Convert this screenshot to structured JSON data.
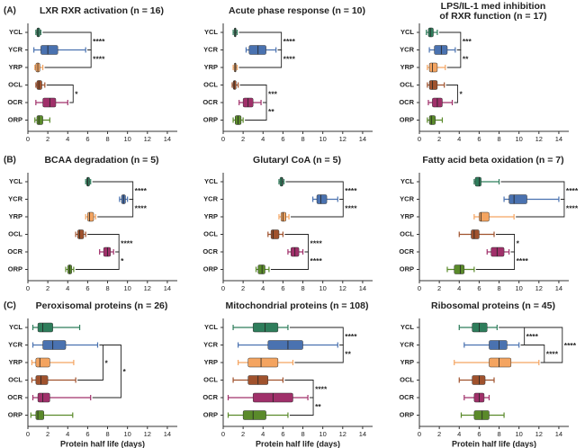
{
  "panel_labels": [
    "(A)",
    "(B)",
    "(C)"
  ],
  "chart_data": [
    {
      "type": "box",
      "title": "LXR RXR activation (n = 16)",
      "categories": [
        "YCL",
        "YCR",
        "YRP",
        "OCL",
        "OCR",
        "ORP"
      ],
      "colors": [
        "#2e7d5b",
        "#4a72b0",
        "#f4a460",
        "#a0522d",
        "#a0306a",
        "#5a8a2a"
      ],
      "boxes": [
        {
          "min": 0.8,
          "q1": 0.9,
          "median": 1.0,
          "q3": 1.2,
          "max": 1.3
        },
        {
          "min": 0.6,
          "q1": 1.3,
          "median": 2.0,
          "q3": 3.0,
          "max": 5.8
        },
        {
          "min": 0.7,
          "q1": 0.8,
          "median": 1.0,
          "q3": 1.2,
          "max": 1.5
        },
        {
          "min": 0.8,
          "q1": 0.9,
          "median": 1.1,
          "q3": 1.4,
          "max": 1.7
        },
        {
          "min": 0.8,
          "q1": 1.5,
          "median": 2.2,
          "q3": 2.8,
          "max": 4.0
        },
        {
          "min": 0.7,
          "q1": 0.9,
          "median": 1.1,
          "q3": 1.5,
          "max": 2.2
        }
      ],
      "annotations": [
        {
          "rows": [
            0,
            1
          ],
          "label": "****"
        },
        {
          "rows": [
            1,
            2
          ],
          "label": "****"
        },
        {
          "rows": [
            3,
            4
          ],
          "label": "*"
        }
      ],
      "xlim": [
        0,
        15
      ],
      "xticks": [
        0,
        2,
        4,
        6,
        8,
        10,
        12,
        14
      ]
    },
    {
      "type": "box",
      "title": "Acute phase response (n = 10)",
      "categories": [
        "YCL",
        "YCR",
        "YRP",
        "OCL",
        "OCR",
        "ORP"
      ],
      "colors": [
        "#2e7d5b",
        "#4a72b0",
        "#f4a460",
        "#a0522d",
        "#a0306a",
        "#5a8a2a"
      ],
      "boxes": [
        {
          "min": 1.0,
          "q1": 1.1,
          "median": 1.2,
          "q3": 1.3,
          "max": 1.4
        },
        {
          "min": 2.3,
          "q1": 2.6,
          "median": 3.5,
          "q3": 4.3,
          "max": 5.3
        },
        {
          "min": 1.0,
          "q1": 1.1,
          "median": 1.2,
          "q3": 1.3,
          "max": 1.4
        },
        {
          "min": 0.9,
          "q1": 1.0,
          "median": 1.1,
          "q3": 1.3,
          "max": 1.5
        },
        {
          "min": 1.6,
          "q1": 2.0,
          "median": 2.5,
          "q3": 3.0,
          "max": 3.8
        },
        {
          "min": 1.0,
          "q1": 1.2,
          "median": 1.5,
          "q3": 1.8,
          "max": 2.0
        }
      ],
      "annotations": [
        {
          "rows": [
            0,
            1
          ],
          "label": "****"
        },
        {
          "rows": [
            1,
            2
          ],
          "label": "****"
        },
        {
          "rows": [
            3,
            4
          ],
          "label": "***"
        },
        {
          "rows": [
            4,
            5
          ],
          "label": "**"
        }
      ],
      "xlim": [
        0,
        15
      ],
      "xticks": [
        0,
        2,
        4,
        6,
        8,
        10,
        12,
        14
      ]
    },
    {
      "type": "box",
      "title": [
        "LPS/IL-1 med inhibition",
        "of RXR function (n = 17)"
      ],
      "categories": [
        "YCL",
        "YCR",
        "YRP",
        "OCL",
        "OCR",
        "ORP"
      ],
      "colors": [
        "#2e7d5b",
        "#4a72b0",
        "#f4a460",
        "#a0522d",
        "#a0306a",
        "#5a8a2a"
      ],
      "boxes": [
        {
          "min": 0.7,
          "q1": 0.9,
          "median": 1.1,
          "q3": 1.4,
          "max": 1.8
        },
        {
          "min": 1.0,
          "q1": 1.5,
          "median": 2.2,
          "q3": 2.8,
          "max": 3.6
        },
        {
          "min": 0.8,
          "q1": 1.0,
          "median": 1.3,
          "q3": 1.8,
          "max": 2.6
        },
        {
          "min": 0.8,
          "q1": 1.0,
          "median": 1.3,
          "q3": 1.8,
          "max": 2.5
        },
        {
          "min": 0.9,
          "q1": 1.3,
          "median": 1.8,
          "q3": 2.3,
          "max": 3.3
        },
        {
          "min": 0.8,
          "q1": 1.0,
          "median": 1.2,
          "q3": 1.6,
          "max": 2.3
        }
      ],
      "annotations": [
        {
          "rows": [
            0,
            1
          ],
          "label": "***"
        },
        {
          "rows": [
            1,
            2
          ],
          "label": "**"
        },
        {
          "rows": [
            3,
            4
          ],
          "label": "*"
        }
      ],
      "xlim": [
        0,
        15
      ],
      "xticks": [
        0,
        2,
        4,
        6,
        8,
        10,
        12,
        14
      ]
    },
    {
      "type": "box",
      "title": "BCAA degradation (n = 5)",
      "categories": [
        "YCL",
        "YCR",
        "YRP",
        "OCL",
        "OCR",
        "ORP"
      ],
      "colors": [
        "#2e7d5b",
        "#4a72b0",
        "#f4a460",
        "#a0522d",
        "#a0306a",
        "#5a8a2a"
      ],
      "boxes": [
        {
          "min": 5.8,
          "q1": 5.9,
          "median": 6.0,
          "q3": 6.2,
          "max": 6.3
        },
        {
          "min": 9.2,
          "q1": 9.4,
          "median": 9.6,
          "q3": 9.8,
          "max": 10.0
        },
        {
          "min": 5.8,
          "q1": 6.0,
          "median": 6.2,
          "q3": 6.6,
          "max": 6.8
        },
        {
          "min": 4.8,
          "q1": 5.0,
          "median": 5.2,
          "q3": 5.6,
          "max": 5.8
        },
        {
          "min": 7.2,
          "q1": 7.6,
          "median": 8.0,
          "q3": 8.3,
          "max": 8.6
        },
        {
          "min": 3.8,
          "q1": 4.0,
          "median": 4.2,
          "q3": 4.4,
          "max": 4.6
        }
      ],
      "annotations": [
        {
          "rows": [
            0,
            1
          ],
          "label": "****"
        },
        {
          "rows": [
            1,
            2
          ],
          "label": "****"
        },
        {
          "rows": [
            3,
            4
          ],
          "label": "****"
        },
        {
          "rows": [
            4,
            5
          ],
          "label": "*"
        }
      ],
      "xlim": [
        0,
        15
      ],
      "xticks": [
        0,
        2,
        4,
        6,
        8,
        10,
        12,
        14
      ]
    },
    {
      "type": "box",
      "title": "Glutaryl CoA (n = 5)",
      "categories": [
        "YCL",
        "YCR",
        "YRP",
        "OCL",
        "OCR",
        "ORP"
      ],
      "colors": [
        "#2e7d5b",
        "#4a72b0",
        "#f4a460",
        "#a0522d",
        "#a0306a",
        "#5a8a2a"
      ],
      "boxes": [
        {
          "min": 5.6,
          "q1": 5.7,
          "median": 5.9,
          "q3": 6.0,
          "max": 6.1
        },
        {
          "min": 9.0,
          "q1": 9.4,
          "median": 9.8,
          "q3": 10.4,
          "max": 11.5
        },
        {
          "min": 5.6,
          "q1": 5.8,
          "median": 6.0,
          "q3": 6.3,
          "max": 6.6
        },
        {
          "min": 4.5,
          "q1": 4.8,
          "median": 5.0,
          "q3": 5.6,
          "max": 6.0
        },
        {
          "min": 6.5,
          "q1": 6.8,
          "median": 7.2,
          "q3": 7.6,
          "max": 8.0
        },
        {
          "min": 3.3,
          "q1": 3.5,
          "median": 3.9,
          "q3": 4.2,
          "max": 4.6
        }
      ],
      "annotations": [
        {
          "rows": [
            0,
            1
          ],
          "label": "****"
        },
        {
          "rows": [
            1,
            2
          ],
          "label": "****"
        },
        {
          "rows": [
            3,
            4
          ],
          "label": "****"
        },
        {
          "rows": [
            4,
            5
          ],
          "label": "****"
        }
      ],
      "xlim": [
        0,
        15
      ],
      "xticks": [
        0,
        2,
        4,
        6,
        8,
        10,
        12,
        14
      ]
    },
    {
      "type": "box",
      "title": "Fatty acid beta oxidation (n = 7)",
      "categories": [
        "YCL",
        "YCR",
        "YRP",
        "OCL",
        "OCR",
        "ORP"
      ],
      "colors": [
        "#2e7d5b",
        "#4a72b0",
        "#f4a460",
        "#a0522d",
        "#a0306a",
        "#5a8a2a"
      ],
      "boxes": [
        {
          "min": 5.5,
          "q1": 5.6,
          "median": 6.0,
          "q3": 6.2,
          "max": 8.0
        },
        {
          "min": 8.5,
          "q1": 9.0,
          "median": 9.5,
          "q3": 10.8,
          "max": 14.0
        },
        {
          "min": 5.5,
          "q1": 6.0,
          "median": 6.2,
          "q3": 7.0,
          "max": 9.5
        },
        {
          "min": 4.0,
          "q1": 5.2,
          "median": 5.5,
          "q3": 6.0,
          "max": 7.5
        },
        {
          "min": 6.8,
          "q1": 7.2,
          "median": 7.8,
          "q3": 8.5,
          "max": 9.0
        },
        {
          "min": 2.8,
          "q1": 3.5,
          "median": 4.1,
          "q3": 4.5,
          "max": 5.5
        }
      ],
      "annotations": [
        {
          "rows": [
            0,
            1
          ],
          "label": "****"
        },
        {
          "rows": [
            1,
            2
          ],
          "label": "****"
        },
        {
          "rows": [
            3,
            4
          ],
          "label": "*"
        },
        {
          "rows": [
            4,
            5
          ],
          "label": "****"
        }
      ],
      "xlim": [
        0,
        15
      ],
      "xticks": [
        0,
        2,
        4,
        6,
        8,
        10,
        12,
        14
      ]
    },
    {
      "type": "box",
      "title": "Peroxisomal proteins (n = 26)",
      "categories": [
        "YCL",
        "YCR",
        "YRP",
        "OCL",
        "OCR",
        "ORP"
      ],
      "colors": [
        "#2e7d5b",
        "#4a72b0",
        "#f4a460",
        "#a0522d",
        "#a0306a",
        "#5a8a2a"
      ],
      "boxes": [
        {
          "min": 0.5,
          "q1": 1.0,
          "median": 1.5,
          "q3": 2.5,
          "max": 5.2
        },
        {
          "min": 0.5,
          "q1": 1.5,
          "median": 2.5,
          "q3": 3.8,
          "max": 7.0
        },
        {
          "min": 0.4,
          "q1": 0.8,
          "median": 1.2,
          "q3": 2.2,
          "max": 4.6
        },
        {
          "min": 0.4,
          "q1": 0.8,
          "median": 1.3,
          "q3": 2.0,
          "max": 4.8
        },
        {
          "min": 0.5,
          "q1": 1.0,
          "median": 1.5,
          "q3": 2.2,
          "max": 6.3
        },
        {
          "min": 0.3,
          "q1": 0.8,
          "median": 1.0,
          "q3": 1.6,
          "max": 4.5
        }
      ],
      "annotations": [
        {
          "rows": [
            1,
            3
          ],
          "label": "*"
        },
        {
          "rows": [
            1,
            4
          ],
          "label": "*"
        }
      ],
      "xlim": [
        0,
        15
      ],
      "xticks": [
        0,
        2,
        4,
        6,
        8,
        10,
        12,
        14
      ],
      "xlabel": "Protein half life (days)"
    },
    {
      "type": "box",
      "title": "Mitochondrial proteins (n = 108)",
      "categories": [
        "YCL",
        "YCR",
        "YRP",
        "OCL",
        "OCR",
        "ORP"
      ],
      "colors": [
        "#2e7d5b",
        "#4a72b0",
        "#f4a460",
        "#a0522d",
        "#a0306a",
        "#5a8a2a"
      ],
      "boxes": [
        {
          "min": 1.0,
          "q1": 3.0,
          "median": 4.2,
          "q3": 5.5,
          "max": 6.5
        },
        {
          "min": 1.5,
          "q1": 4.5,
          "median": 6.5,
          "q3": 8.0,
          "max": 11.5
        },
        {
          "min": 1.5,
          "q1": 2.5,
          "median": 3.8,
          "q3": 5.5,
          "max": 7.0
        },
        {
          "min": 1.0,
          "q1": 2.5,
          "median": 3.5,
          "q3": 4.5,
          "max": 6.0
        },
        {
          "min": 0.5,
          "q1": 3.0,
          "median": 5.0,
          "q3": 7.0,
          "max": 8.5
        },
        {
          "min": 0.5,
          "q1": 2.0,
          "median": 3.0,
          "q3": 4.3,
          "max": 6.5
        }
      ],
      "annotations": [
        {
          "rows": [
            0,
            1
          ],
          "label": "****"
        },
        {
          "rows": [
            1,
            2
          ],
          "label": "**"
        },
        {
          "rows": [
            3,
            4
          ],
          "label": "****"
        },
        {
          "rows": [
            4,
            5
          ],
          "label": "**"
        }
      ],
      "xlim": [
        0,
        15
      ],
      "xticks": [
        0,
        2,
        4,
        6,
        8,
        10,
        12,
        14
      ],
      "xlabel": "Protein half life (days)"
    },
    {
      "type": "box",
      "title": "Ribosomal proteins (n = 45)",
      "categories": [
        "YCL",
        "YCR",
        "YRP",
        "OCL",
        "OCR",
        "ORP"
      ],
      "colors": [
        "#2e7d5b",
        "#4a72b0",
        "#f4a460",
        "#a0522d",
        "#a0306a",
        "#5a8a2a"
      ],
      "boxes": [
        {
          "min": 4.0,
          "q1": 5.3,
          "median": 6.0,
          "q3": 6.8,
          "max": 7.8
        },
        {
          "min": 4.5,
          "q1": 7.0,
          "median": 8.0,
          "q3": 8.8,
          "max": 10.0
        },
        {
          "min": 3.5,
          "q1": 7.0,
          "median": 8.0,
          "q3": 9.2,
          "max": 12.0
        },
        {
          "min": 4.0,
          "q1": 5.3,
          "median": 6.0,
          "q3": 6.6,
          "max": 7.5
        },
        {
          "min": 4.5,
          "q1": 5.5,
          "median": 6.0,
          "q3": 6.5,
          "max": 7.0
        },
        {
          "min": 4.2,
          "q1": 5.5,
          "median": 6.3,
          "q3": 7.0,
          "max": 8.5
        }
      ],
      "annotations": [
        {
          "rows": [
            0,
            1
          ],
          "label": "****"
        },
        {
          "rows": [
            1,
            2
          ],
          "label": "****"
        },
        {
          "rows": [
            0,
            2
          ],
          "label": "****"
        }
      ],
      "xlim": [
        0,
        15
      ],
      "xticks": [
        0,
        2,
        4,
        6,
        8,
        10,
        12,
        14
      ],
      "xlabel": "Protein half life (days)"
    }
  ]
}
